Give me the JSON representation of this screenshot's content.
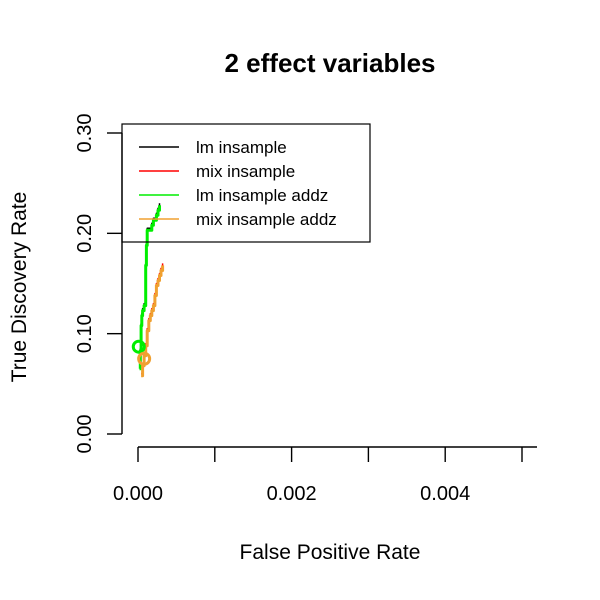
{
  "chart_data": {
    "type": "line",
    "title": "2 effect variables",
    "xlabel": "False Positive Rate",
    "ylabel": "True Discovery Rate",
    "xlim": [
      0,
      0.005
    ],
    "ylim": [
      0,
      0.3
    ],
    "x_ticks": [
      0,
      0.001,
      0.002,
      0.003,
      0.004,
      0.005
    ],
    "x_tick_labels": [
      "0.000",
      "0.002",
      "0.004"
    ],
    "x_tick_label_values": [
      0,
      0.002,
      0.004
    ],
    "y_ticks": [
      0,
      0.1,
      0.2,
      0.3
    ],
    "y_tick_labels": [
      "0.00",
      "0.10",
      "0.20",
      "0.30"
    ],
    "legend_position": "top-left",
    "series": [
      {
        "name": "lm insample",
        "color": "#000000",
        "x": [
          2e-05,
          3e-05,
          4e-05,
          5e-05,
          6e-05,
          8e-05,
          0.0001,
          0.00011,
          0.00012,
          0.00014,
          0.00016,
          0.00018,
          0.0002,
          0.00022,
          0.00024,
          0.00026,
          0.00028
        ],
        "y": [
          0.068,
          0.085,
          0.11,
          0.12,
          0.125,
          0.13,
          0.17,
          0.19,
          0.205,
          0.205,
          0.205,
          0.21,
          0.215,
          0.215,
          0.22,
          0.225,
          0.23
        ]
      },
      {
        "name": "mix insample",
        "color": "#ff0000",
        "x": [
          4e-05,
          6e-05,
          8e-05,
          0.0001,
          0.00012,
          0.00014,
          0.00016,
          0.00018,
          0.0002,
          0.00022,
          0.00024,
          0.00026,
          0.00028,
          0.0003,
          0.00032
        ],
        "y": [
          0.06,
          0.07,
          0.08,
          0.09,
          0.105,
          0.115,
          0.12,
          0.125,
          0.13,
          0.14,
          0.15,
          0.155,
          0.16,
          0.165,
          0.17
        ]
      },
      {
        "name": "lm insample addz",
        "color": "#00ee00",
        "x": [
          2e-05,
          3e-05,
          4e-05,
          5e-05,
          6e-05,
          8e-05,
          0.0001,
          0.00011,
          0.00012,
          0.00014,
          0.00016,
          0.00018,
          0.0002,
          0.00022,
          0.00024,
          0.00026,
          0.00028
        ],
        "y": [
          0.065,
          0.083,
          0.108,
          0.118,
          0.123,
          0.128,
          0.168,
          0.188,
          0.203,
          0.203,
          0.203,
          0.208,
          0.213,
          0.213,
          0.218,
          0.223,
          0.228
        ]
      },
      {
        "name": "mix insample addz",
        "color": "#f0a030",
        "x": [
          4e-05,
          6e-05,
          8e-05,
          0.0001,
          0.00012,
          0.00014,
          0.00016,
          0.00018,
          0.0002,
          0.00022,
          0.00024,
          0.00026,
          0.00028,
          0.0003,
          0.00032
        ],
        "y": [
          0.058,
          0.068,
          0.078,
          0.088,
          0.103,
          0.113,
          0.118,
          0.123,
          0.128,
          0.138,
          0.148,
          0.153,
          0.158,
          0.163,
          0.168
        ]
      }
    ],
    "markers": [
      {
        "series": "lm insample addz",
        "x": 1e-05,
        "y": 0.087,
        "color": "#00ee00"
      },
      {
        "series": "mix insample addz",
        "x": 8e-05,
        "y": 0.075,
        "color": "#f0a030"
      }
    ]
  }
}
